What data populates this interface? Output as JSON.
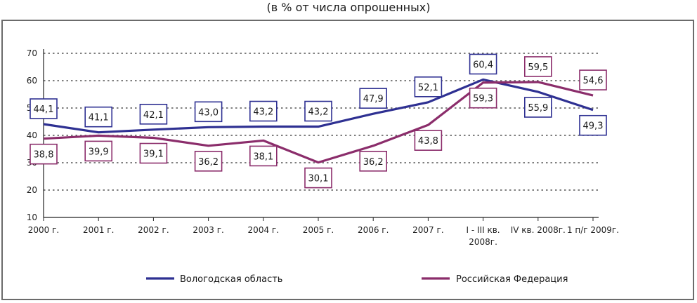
{
  "subtitle": "(в % от числа опрошенных)",
  "chart_data": {
    "type": "line",
    "categories": [
      "2000 г.",
      "2001 г.",
      "2002 г.",
      "2003 г.",
      "2004 г.",
      "2005 г.",
      "2006 г.",
      "2007 г.",
      "I - III кв. 2008г.",
      "IV кв. 2008г.",
      "1 п/г 2009г."
    ],
    "category_lines": [
      [
        "2000 г."
      ],
      [
        "2001 г."
      ],
      [
        "2002 г."
      ],
      [
        "2003 г."
      ],
      [
        "2004 г."
      ],
      [
        "2005 г."
      ],
      [
        "2006 г."
      ],
      [
        "2007 г."
      ],
      [
        "I - III кв.",
        "2008г."
      ],
      [
        "IV кв. 2008г."
      ],
      [
        "1 п/г 2009г."
      ]
    ],
    "y_ticks": [
      "10",
      "20",
      "30",
      "40",
      "50",
      "60",
      "70"
    ],
    "ylim": [
      10,
      70
    ],
    "grid": "horizontal dotted",
    "legend_position": "bottom",
    "series": [
      {
        "name": "Вологодская область",
        "color": "#2e3092",
        "values": [
          44.1,
          41.1,
          42.1,
          43.0,
          43.2,
          43.2,
          47.9,
          52.1,
          60.4,
          55.9,
          49.3
        ],
        "labels": [
          "44,1",
          "41,1",
          "42,1",
          "43,0",
          "43,2",
          "43,2",
          "47,9",
          "52,1",
          "60,4",
          "55,9",
          "49,3"
        ]
      },
      {
        "name": "Российская Федерация",
        "color": "#8b2d6b",
        "values": [
          38.8,
          39.9,
          39.1,
          36.2,
          38.1,
          30.1,
          36.2,
          43.8,
          59.3,
          59.5,
          54.6
        ],
        "labels": [
          "38,8",
          "39,9",
          "39,1",
          "36,2",
          "38,1",
          "30,1",
          "36,2",
          "43,8",
          "59,3",
          "59,5",
          "54,6"
        ]
      }
    ]
  }
}
